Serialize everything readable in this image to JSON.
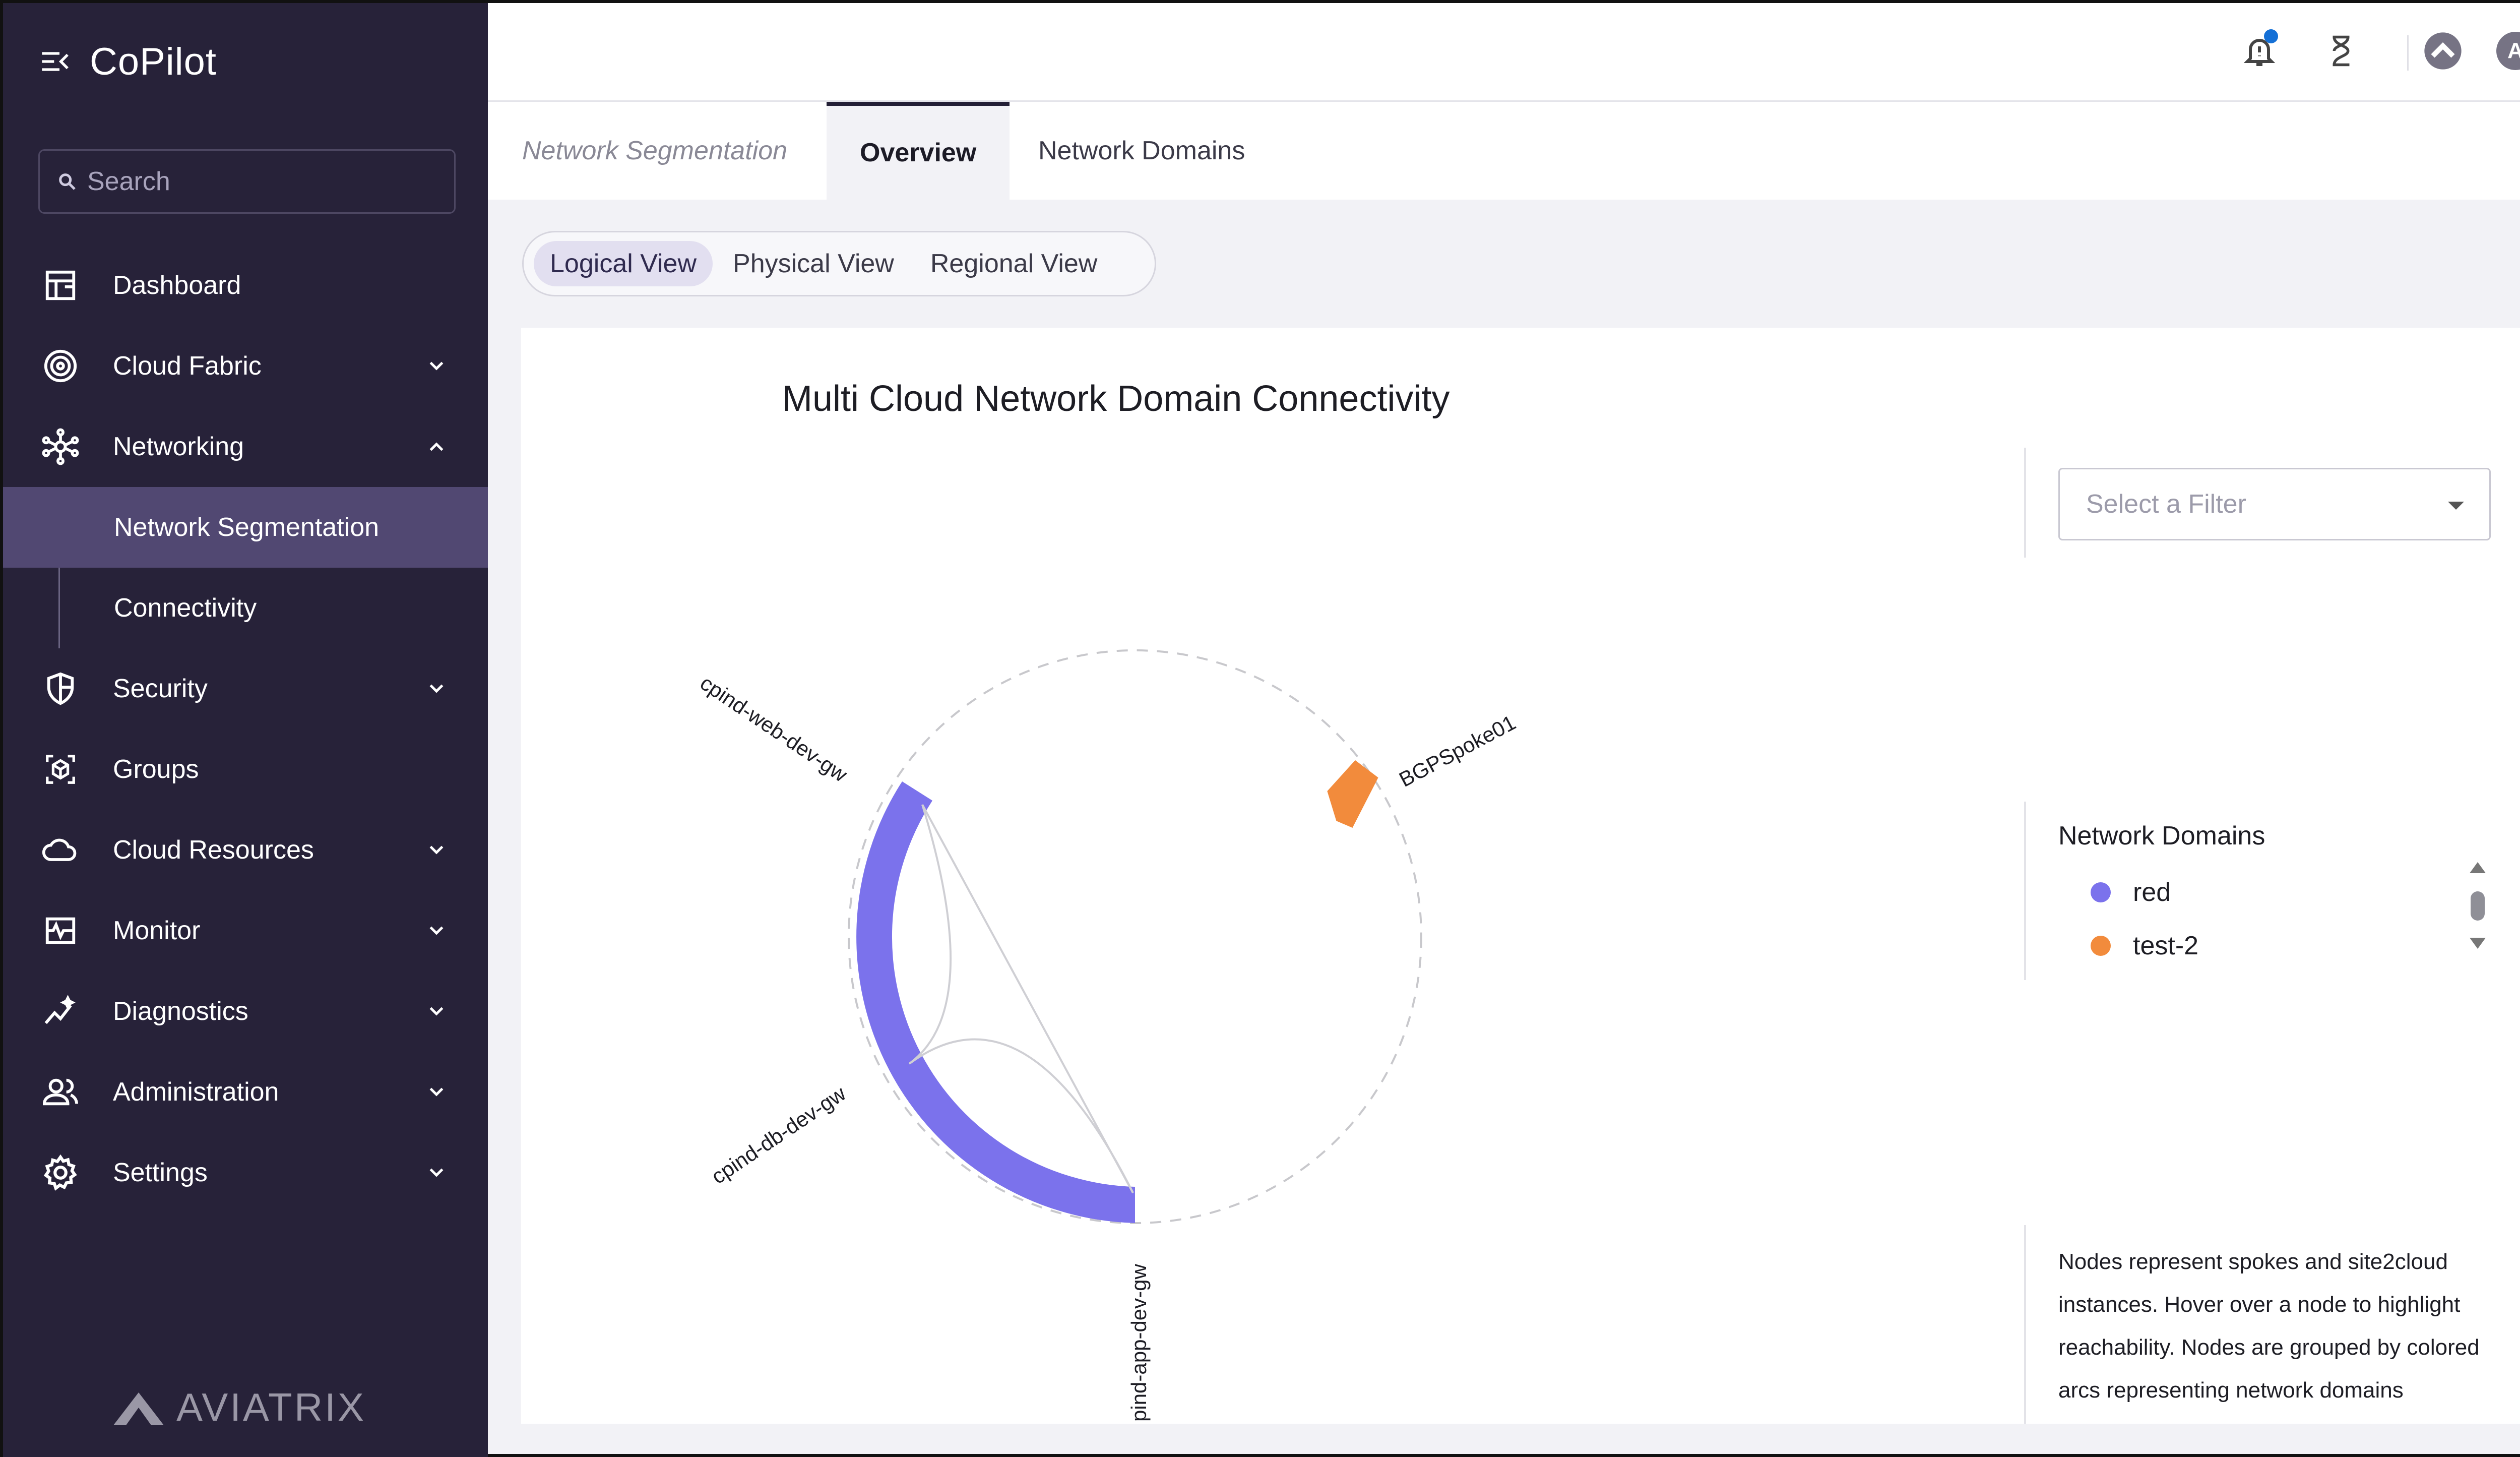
{
  "app": {
    "title": "CoPilot",
    "brand_logo_text": "AVIATRIX"
  },
  "search": {
    "placeholder": "Search"
  },
  "sidebar": {
    "items": [
      {
        "label": "Dashboard"
      },
      {
        "label": "Cloud Fabric"
      },
      {
        "label": "Networking"
      },
      {
        "label": "Network Segmentation"
      },
      {
        "label": "Connectivity"
      },
      {
        "label": "Security"
      },
      {
        "label": "Groups"
      },
      {
        "label": "Cloud Resources"
      },
      {
        "label": "Monitor"
      },
      {
        "label": "Diagnostics"
      },
      {
        "label": "Administration"
      },
      {
        "label": "Settings"
      }
    ]
  },
  "topbar": {
    "avatar_letter": "A"
  },
  "tabs": {
    "breadcrumb": "Network Segmentation",
    "items": [
      {
        "label": "Overview"
      },
      {
        "label": "Network Domains"
      }
    ]
  },
  "views": {
    "items": [
      {
        "label": "Logical View"
      },
      {
        "label": "Physical View"
      },
      {
        "label": "Regional View"
      }
    ]
  },
  "chart": {
    "title": "Multi Cloud Network Domain Connectivity",
    "nodes": [
      {
        "label": "cpind-web-dev-gw"
      },
      {
        "label": "BGPSpoke01"
      },
      {
        "label": "cpind-db-dev-gw"
      },
      {
        "label": "pind-app-dev-gw"
      }
    ]
  },
  "filter": {
    "placeholder": "Select a Filter"
  },
  "legend": {
    "title": "Network Domains",
    "items": [
      {
        "label": "red",
        "color": "#7b72ec"
      },
      {
        "label": "test-2",
        "color": "#f28b3c"
      }
    ]
  },
  "description": "Nodes represent spokes and site2cloud instances. Hover over a node to highlight reachability. Nodes are grouped by colored arcs representing network domains"
}
